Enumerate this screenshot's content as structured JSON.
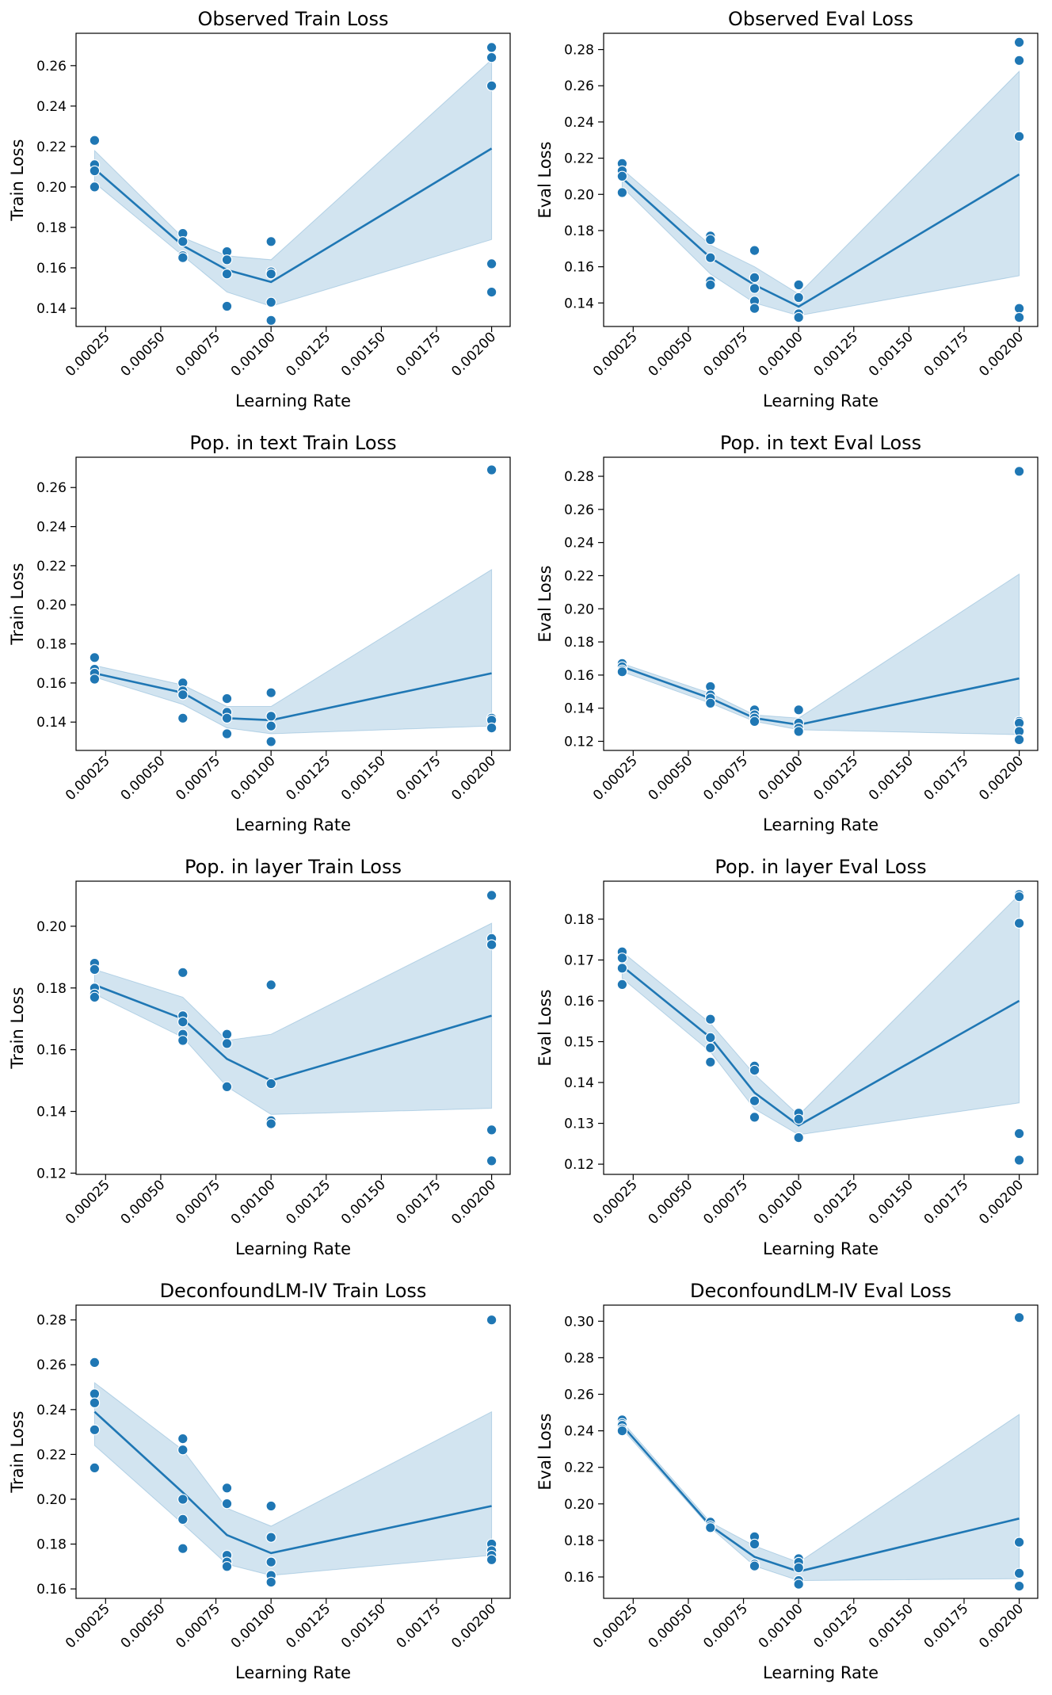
{
  "chart_data": [
    {
      "type": "line",
      "title": "Observed Train Loss",
      "xlabel": "Learning Rate",
      "ylabel": "Train Loss",
      "xlim": [
        0.000116,
        0.002084
      ],
      "ylim": [
        0.131,
        0.276
      ],
      "xticks": [
        "0.00025",
        "0.00050",
        "0.00075",
        "0.00100",
        "0.00125",
        "0.00150",
        "0.00175",
        "0.00200"
      ],
      "yticks": [
        "0.14",
        "0.16",
        "0.18",
        "0.20",
        "0.22",
        "0.24",
        "0.26"
      ],
      "x": [
        0.0002,
        0.0006,
        0.0008,
        0.001,
        0.002
      ],
      "mean": [
        0.209,
        0.171,
        0.159,
        0.153,
        0.219
      ],
      "ci_low": [
        0.202,
        0.166,
        0.148,
        0.141,
        0.174
      ],
      "ci_high": [
        0.218,
        0.175,
        0.166,
        0.164,
        0.263
      ],
      "points": [
        [
          0.0002,
          0.223
        ],
        [
          0.0002,
          0.211
        ],
        [
          0.0002,
          0.208
        ],
        [
          0.0002,
          0.2
        ],
        [
          0.0006,
          0.177
        ],
        [
          0.0006,
          0.173
        ],
        [
          0.0006,
          0.166
        ],
        [
          0.0006,
          0.165
        ],
        [
          0.0008,
          0.168
        ],
        [
          0.0008,
          0.164
        ],
        [
          0.0008,
          0.157
        ],
        [
          0.0008,
          0.141
        ],
        [
          0.001,
          0.173
        ],
        [
          0.001,
          0.158
        ],
        [
          0.001,
          0.157
        ],
        [
          0.001,
          0.143
        ],
        [
          0.001,
          0.134
        ],
        [
          0.002,
          0.269
        ],
        [
          0.002,
          0.264
        ],
        [
          0.002,
          0.25
        ],
        [
          0.002,
          0.162
        ],
        [
          0.002,
          0.148
        ]
      ]
    },
    {
      "type": "line",
      "title": "Observed Eval Loss",
      "xlabel": "Learning Rate",
      "ylabel": "Eval Loss",
      "xlim": [
        0.000116,
        0.002084
      ],
      "ylim": [
        0.127,
        0.289
      ],
      "xticks": [
        "0.00025",
        "0.00050",
        "0.00075",
        "0.00100",
        "0.00125",
        "0.00150",
        "0.00175",
        "0.00200"
      ],
      "yticks": [
        "0.14",
        "0.16",
        "0.18",
        "0.20",
        "0.22",
        "0.24",
        "0.26",
        "0.28"
      ],
      "x": [
        0.0002,
        0.0006,
        0.0008,
        0.001,
        0.002
      ],
      "mean": [
        0.209,
        0.165,
        0.15,
        0.138,
        0.211
      ],
      "ci_low": [
        0.204,
        0.156,
        0.14,
        0.133,
        0.155
      ],
      "ci_high": [
        0.214,
        0.172,
        0.16,
        0.145,
        0.268
      ],
      "points": [
        [
          0.0002,
          0.217
        ],
        [
          0.0002,
          0.213
        ],
        [
          0.0002,
          0.21
        ],
        [
          0.0002,
          0.201
        ],
        [
          0.0006,
          0.177
        ],
        [
          0.0006,
          0.175
        ],
        [
          0.0006,
          0.165
        ],
        [
          0.0006,
          0.152
        ],
        [
          0.0006,
          0.15
        ],
        [
          0.0008,
          0.169
        ],
        [
          0.0008,
          0.154
        ],
        [
          0.0008,
          0.148
        ],
        [
          0.0008,
          0.141
        ],
        [
          0.0008,
          0.137
        ],
        [
          0.001,
          0.15
        ],
        [
          0.001,
          0.143
        ],
        [
          0.001,
          0.134
        ],
        [
          0.001,
          0.132
        ],
        [
          0.002,
          0.284
        ],
        [
          0.002,
          0.274
        ],
        [
          0.002,
          0.232
        ],
        [
          0.002,
          0.137
        ],
        [
          0.002,
          0.132
        ]
      ]
    },
    {
      "type": "line",
      "title": "Pop. in text Train Loss",
      "xlabel": "Learning Rate",
      "ylabel": "Train Loss",
      "xlim": [
        0.000116,
        0.002084
      ],
      "ylim": [
        0.1255,
        0.2755
      ],
      "xticks": [
        "0.00025",
        "0.00050",
        "0.00075",
        "0.00100",
        "0.00125",
        "0.00150",
        "0.00175",
        "0.00200"
      ],
      "yticks": [
        "0.14",
        "0.16",
        "0.18",
        "0.20",
        "0.22",
        "0.24",
        "0.26"
      ],
      "x": [
        0.0002,
        0.0006,
        0.0008,
        0.001,
        0.002
      ],
      "mean": [
        0.165,
        0.155,
        0.142,
        0.141,
        0.165
      ],
      "ci_low": [
        0.163,
        0.149,
        0.137,
        0.134,
        0.138
      ],
      "ci_high": [
        0.169,
        0.159,
        0.148,
        0.148,
        0.218
      ],
      "points": [
        [
          0.0002,
          0.173
        ],
        [
          0.0002,
          0.167
        ],
        [
          0.0002,
          0.165
        ],
        [
          0.0002,
          0.162
        ],
        [
          0.0006,
          0.16
        ],
        [
          0.0006,
          0.156
        ],
        [
          0.0006,
          0.154
        ],
        [
          0.0006,
          0.142
        ],
        [
          0.0008,
          0.152
        ],
        [
          0.0008,
          0.145
        ],
        [
          0.0008,
          0.142
        ],
        [
          0.0008,
          0.134
        ],
        [
          0.001,
          0.155
        ],
        [
          0.001,
          0.143
        ],
        [
          0.001,
          0.138
        ],
        [
          0.001,
          0.13
        ],
        [
          0.002,
          0.269
        ],
        [
          0.002,
          0.142
        ],
        [
          0.002,
          0.141
        ],
        [
          0.002,
          0.137
        ]
      ]
    },
    {
      "type": "line",
      "title": "Pop. in text Eval Loss",
      "xlabel": "Learning Rate",
      "ylabel": "Eval Loss",
      "xlim": [
        0.000116,
        0.002084
      ],
      "ylim": [
        0.1145,
        0.2915
      ],
      "xticks": [
        "0.00025",
        "0.00050",
        "0.00075",
        "0.00100",
        "0.00125",
        "0.00150",
        "0.00175",
        "0.00200"
      ],
      "yticks": [
        "0.12",
        "0.14",
        "0.16",
        "0.18",
        "0.20",
        "0.22",
        "0.24",
        "0.26",
        "0.28"
      ],
      "x": [
        0.0002,
        0.0006,
        0.0008,
        0.001,
        0.002
      ],
      "mean": [
        0.165,
        0.146,
        0.134,
        0.13,
        0.158
      ],
      "ci_low": [
        0.162,
        0.143,
        0.132,
        0.127,
        0.124
      ],
      "ci_high": [
        0.167,
        0.149,
        0.136,
        0.134,
        0.221
      ],
      "points": [
        [
          0.0002,
          0.167
        ],
        [
          0.0002,
          0.165
        ],
        [
          0.0002,
          0.163
        ],
        [
          0.0002,
          0.162
        ],
        [
          0.0006,
          0.153
        ],
        [
          0.0006,
          0.148
        ],
        [
          0.0006,
          0.146
        ],
        [
          0.0006,
          0.143
        ],
        [
          0.0008,
          0.139
        ],
        [
          0.0008,
          0.136
        ],
        [
          0.0008,
          0.134
        ],
        [
          0.0008,
          0.132
        ],
        [
          0.001,
          0.139
        ],
        [
          0.001,
          0.131
        ],
        [
          0.001,
          0.128
        ],
        [
          0.001,
          0.126
        ],
        [
          0.002,
          0.283
        ],
        [
          0.002,
          0.132
        ],
        [
          0.002,
          0.131
        ],
        [
          0.002,
          0.126
        ],
        [
          0.002,
          0.121
        ]
      ]
    },
    {
      "type": "line",
      "title": "Pop. in layer Train Loss",
      "xlabel": "Learning Rate",
      "ylabel": "Train Loss",
      "xlim": [
        0.000116,
        0.002084
      ],
      "ylim": [
        0.1196,
        0.2146
      ],
      "xticks": [
        "0.00025",
        "0.00050",
        "0.00075",
        "0.00100",
        "0.00125",
        "0.00150",
        "0.00175",
        "0.00200"
      ],
      "yticks": [
        "0.12",
        "0.14",
        "0.16",
        "0.18",
        "0.20"
      ],
      "x": [
        0.0002,
        0.0006,
        0.0008,
        0.001,
        0.002
      ],
      "mean": [
        0.181,
        0.17,
        0.157,
        0.15,
        0.171
      ],
      "ci_low": [
        0.178,
        0.164,
        0.148,
        0.139,
        0.141
      ],
      "ci_high": [
        0.186,
        0.177,
        0.163,
        0.165,
        0.201
      ],
      "points": [
        [
          0.0002,
          0.188
        ],
        [
          0.0002,
          0.186
        ],
        [
          0.0002,
          0.18
        ],
        [
          0.0002,
          0.178
        ],
        [
          0.0002,
          0.177
        ],
        [
          0.0006,
          0.185
        ],
        [
          0.0006,
          0.171
        ],
        [
          0.0006,
          0.169
        ],
        [
          0.0006,
          0.165
        ],
        [
          0.0006,
          0.163
        ],
        [
          0.0008,
          0.165
        ],
        [
          0.0008,
          0.162
        ],
        [
          0.0008,
          0.148
        ],
        [
          0.001,
          0.181
        ],
        [
          0.001,
          0.149
        ],
        [
          0.001,
          0.137
        ],
        [
          0.001,
          0.136
        ],
        [
          0.002,
          0.21
        ],
        [
          0.002,
          0.196
        ],
        [
          0.002,
          0.194
        ],
        [
          0.002,
          0.134
        ],
        [
          0.002,
          0.124
        ]
      ]
    },
    {
      "type": "line",
      "title": "Pop. in layer Eval Loss",
      "xlabel": "Learning Rate",
      "ylabel": "Eval Loss",
      "xlim": [
        0.000116,
        0.002084
      ],
      "ylim": [
        0.1175,
        0.1893
      ],
      "xticks": [
        "0.00025",
        "0.00050",
        "0.00075",
        "0.00100",
        "0.00125",
        "0.00150",
        "0.00175",
        "0.00200"
      ],
      "yticks": [
        "0.12",
        "0.13",
        "0.14",
        "0.15",
        "0.16",
        "0.17",
        "0.18"
      ],
      "x": [
        0.0002,
        0.0006,
        0.0008,
        0.001,
        0.002
      ],
      "mean": [
        0.1685,
        0.151,
        0.1375,
        0.1295,
        0.16
      ],
      "ci_low": [
        0.1655,
        0.1475,
        0.1335,
        0.1272,
        0.135
      ],
      "ci_high": [
        0.172,
        0.1545,
        0.142,
        0.132,
        0.186
      ],
      "points": [
        [
          0.0002,
          0.172
        ],
        [
          0.0002,
          0.1705
        ],
        [
          0.0002,
          0.168
        ],
        [
          0.0002,
          0.164
        ],
        [
          0.0006,
          0.1555
        ],
        [
          0.0006,
          0.151
        ],
        [
          0.0006,
          0.1485
        ],
        [
          0.0006,
          0.145
        ],
        [
          0.0008,
          0.144
        ],
        [
          0.0008,
          0.143
        ],
        [
          0.0008,
          0.1355
        ],
        [
          0.0008,
          0.1315
        ],
        [
          0.001,
          0.1325
        ],
        [
          0.001,
          0.131
        ],
        [
          0.001,
          0.1265
        ],
        [
          0.002,
          0.186
        ],
        [
          0.002,
          0.1855
        ],
        [
          0.002,
          0.179
        ],
        [
          0.002,
          0.1275
        ],
        [
          0.002,
          0.121
        ]
      ]
    },
    {
      "type": "line",
      "title": "DeconfoundLM-IV Train Loss",
      "xlabel": "Learning Rate",
      "ylabel": "Train Loss",
      "xlim": [
        0.000116,
        0.002084
      ],
      "ylim": [
        0.1558,
        0.2866
      ],
      "xticks": [
        "0.00025",
        "0.00050",
        "0.00075",
        "0.00100",
        "0.00125",
        "0.00150",
        "0.00175",
        "0.00200"
      ],
      "yticks": [
        "0.16",
        "0.18",
        "0.20",
        "0.22",
        "0.24",
        "0.26",
        "0.28"
      ],
      "x": [
        0.0002,
        0.0006,
        0.0008,
        0.001,
        0.002
      ],
      "mean": [
        0.239,
        0.203,
        0.184,
        0.176,
        0.197
      ],
      "ci_low": [
        0.224,
        0.189,
        0.171,
        0.166,
        0.175
      ],
      "ci_high": [
        0.252,
        0.222,
        0.196,
        0.188,
        0.239
      ],
      "points": [
        [
          0.0002,
          0.261
        ],
        [
          0.0002,
          0.247
        ],
        [
          0.0002,
          0.243
        ],
        [
          0.0002,
          0.231
        ],
        [
          0.0002,
          0.214
        ],
        [
          0.0006,
          0.227
        ],
        [
          0.0006,
          0.222
        ],
        [
          0.0006,
          0.2
        ],
        [
          0.0006,
          0.191
        ],
        [
          0.0006,
          0.178
        ],
        [
          0.0008,
          0.205
        ],
        [
          0.0008,
          0.198
        ],
        [
          0.0008,
          0.175
        ],
        [
          0.0008,
          0.172
        ],
        [
          0.0008,
          0.17
        ],
        [
          0.001,
          0.197
        ],
        [
          0.001,
          0.183
        ],
        [
          0.001,
          0.172
        ],
        [
          0.001,
          0.166
        ],
        [
          0.001,
          0.163
        ],
        [
          0.002,
          0.28
        ],
        [
          0.002,
          0.18
        ],
        [
          0.002,
          0.177
        ],
        [
          0.002,
          0.175
        ],
        [
          0.002,
          0.173
        ]
      ]
    },
    {
      "type": "line",
      "title": "DeconfoundLM-IV Eval Loss",
      "xlabel": "Learning Rate",
      "ylabel": "Eval Loss",
      "xlim": [
        0.000116,
        0.002084
      ],
      "ylim": [
        0.1483,
        0.3088
      ],
      "xticks": [
        "0.00025",
        "0.00050",
        "0.00075",
        "0.00100",
        "0.00125",
        "0.00150",
        "0.00175",
        "0.00200"
      ],
      "yticks": [
        "0.16",
        "0.18",
        "0.20",
        "0.22",
        "0.24",
        "0.26",
        "0.28",
        "0.30"
      ],
      "x": [
        0.0002,
        0.0006,
        0.0008,
        0.001,
        0.002
      ],
      "mean": [
        0.243,
        0.188,
        0.171,
        0.163,
        0.192
      ],
      "ci_low": [
        0.241,
        0.187,
        0.166,
        0.158,
        0.159
      ],
      "ci_high": [
        0.245,
        0.19,
        0.177,
        0.168,
        0.249
      ],
      "points": [
        [
          0.0002,
          0.246
        ],
        [
          0.0002,
          0.244
        ],
        [
          0.0002,
          0.243
        ],
        [
          0.0002,
          0.241
        ],
        [
          0.0002,
          0.24
        ],
        [
          0.0006,
          0.19
        ],
        [
          0.0006,
          0.188
        ],
        [
          0.0006,
          0.187
        ],
        [
          0.0008,
          0.182
        ],
        [
          0.0008,
          0.178
        ],
        [
          0.0008,
          0.167
        ],
        [
          0.0008,
          0.166
        ],
        [
          0.001,
          0.17
        ],
        [
          0.001,
          0.168
        ],
        [
          0.001,
          0.165
        ],
        [
          0.001,
          0.158
        ],
        [
          0.001,
          0.156
        ],
        [
          0.002,
          0.302
        ],
        [
          0.002,
          0.179
        ],
        [
          0.002,
          0.162
        ],
        [
          0.002,
          0.155
        ]
      ]
    }
  ]
}
